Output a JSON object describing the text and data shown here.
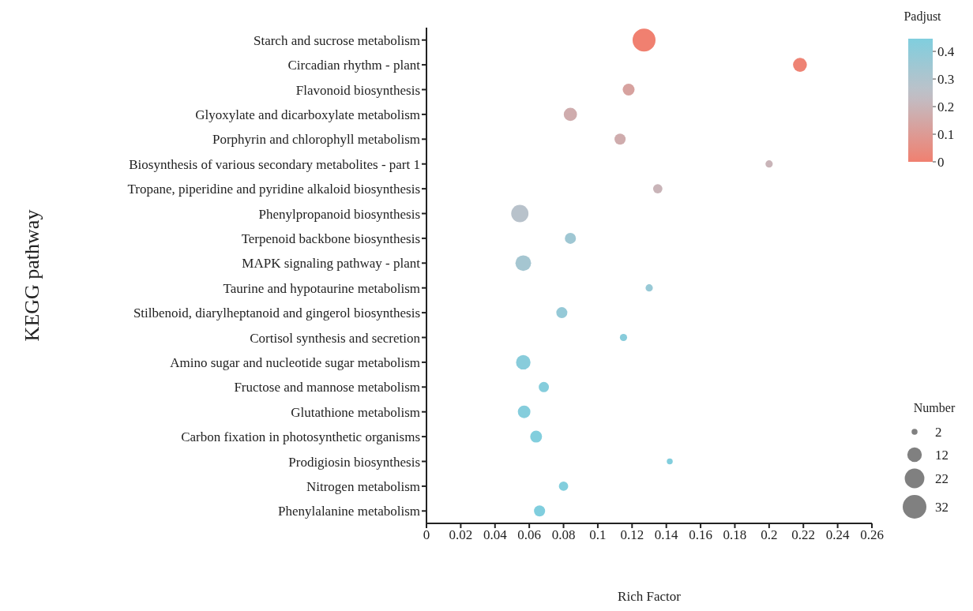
{
  "chart_data": {
    "type": "bubble",
    "xlabel": "Rich Factor",
    "ylabel": "KEGG pathway",
    "clabel": "Padjust",
    "legend_title": "Number",
    "categories": [
      "Starch and sucrose metabolism",
      "Circadian rhythm - plant",
      "Flavonoid biosynthesis",
      "Glyoxylate and dicarboxylate metabolism",
      "Porphyrin and chlorophyll metabolism",
      "Biosynthesis of various secondary metabolites - part 1",
      "Tropane, piperidine and pyridine alkaloid biosynthesis",
      "Phenylpropanoid biosynthesis",
      "Terpenoid backbone biosynthesis",
      "MAPK signaling pathway - plant",
      "Taurine and hypotaurine metabolism",
      "Stilbenoid, diarylheptanoid and gingerol biosynthesis",
      "Cortisol synthesis and secretion",
      "Amino sugar and nucleotide sugar metabolism",
      "Fructose and mannose metabolism",
      "Glutathione metabolism",
      "Carbon fixation in photosynthetic organisms",
      "Prodigiosin biosynthesis",
      "Nitrogen metabolism",
      "Phenylalanine metabolism"
    ],
    "orientation": "horizontal",
    "values": [
      0.127,
      0.218,
      0.118,
      0.084,
      0.113,
      0.2,
      0.135,
      0.0545,
      0.084,
      0.0565,
      0.13,
      0.079,
      0.115,
      0.0565,
      0.0685,
      0.057,
      0.064,
      0.142,
      0.08,
      0.066
    ],
    "sizes": [
      30,
      11,
      8,
      10,
      7,
      3,
      5,
      17,
      7,
      14,
      3,
      7,
      3,
      12,
      6,
      9,
      8,
      2,
      5,
      7
    ],
    "cvalues": [
      0.0,
      0.01,
      0.13,
      0.17,
      0.17,
      0.2,
      0.2,
      0.27,
      0.35,
      0.33,
      0.37,
      0.38,
      0.42,
      0.42,
      0.43,
      0.43,
      0.44,
      0.44,
      0.44,
      0.45
    ],
    "size_legend": [
      2,
      12,
      22,
      32
    ],
    "clim": [
      0,
      0.446
    ],
    "cticks": [
      0,
      0.1,
      0.2,
      0.3,
      0.4
    ],
    "xlim": [
      0,
      0.26
    ],
    "xticks": [
      0,
      0.02,
      0.04,
      0.06,
      0.08,
      0.1,
      0.12,
      0.14,
      0.16,
      0.18,
      0.2,
      0.22,
      0.24,
      0.26
    ]
  }
}
